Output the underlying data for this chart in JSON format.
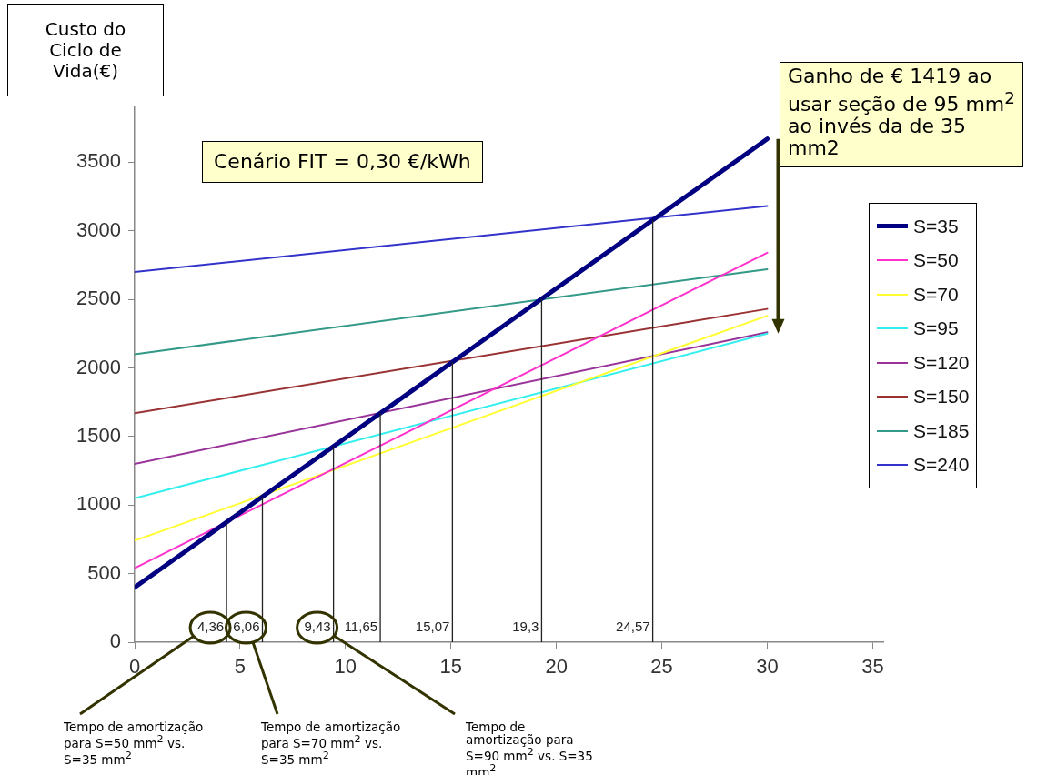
{
  "chart_data": {
    "type": "line",
    "ylabel": "Custo do Ciclo de Vida(€)",
    "x": [
      0,
      30
    ],
    "series": [
      {
        "name": "S=35",
        "color": "#000080",
        "values": [
          400,
          3670
        ]
      },
      {
        "name": "S=50",
        "color": "#ff33cc",
        "values": [
          540,
          2840
        ]
      },
      {
        "name": "S=70",
        "color": "#ffff33",
        "values": [
          740,
          2380
        ]
      },
      {
        "name": "S=95",
        "color": "#33eeee",
        "values": [
          1050,
          2250
        ]
      },
      {
        "name": "S=120",
        "color": "#993399",
        "values": [
          1300,
          2260
        ]
      },
      {
        "name": "S=150",
        "color": "#993333",
        "values": [
          1670,
          2430
        ]
      },
      {
        "name": "S=185",
        "color": "#339988",
        "values": [
          2100,
          2720
        ]
      },
      {
        "name": "S=240",
        "color": "#3333cc",
        "values": [
          2700,
          3180
        ]
      }
    ],
    "xlim": [
      0,
      35.5
    ],
    "xticks": [
      0,
      5,
      10,
      15,
      20,
      25,
      30,
      35
    ],
    "ylim": [
      0,
      3900
    ],
    "yticks": [
      0,
      500,
      1000,
      1500,
      2000,
      2500,
      3000,
      3500
    ],
    "ref_lines": [
      {
        "axis": "x",
        "value": 4.36,
        "label": "4,36"
      },
      {
        "axis": "x",
        "value": 6.06,
        "label": "6,06"
      },
      {
        "axis": "x",
        "value": 9.43,
        "label": "9,43"
      },
      {
        "axis": "x",
        "value": 11.65,
        "label": "11,65"
      },
      {
        "axis": "x",
        "value": 15.07,
        "label": "15,07"
      },
      {
        "axis": "x",
        "value": 19.3,
        "label": "19,3"
      },
      {
        "axis": "x",
        "value": 24.57,
        "label": "24,57"
      }
    ],
    "annotations": [
      "Cenário FIT = 0,30 €/kWh",
      "Ganho de € 1419 ao usar seção de 95 mm$^{2}$ ao invés da de 35 mm2",
      "Tempo de amortização para S=50 mm$^{2}$  vs. S=35 mm$^{2}$",
      "Tempo de amortização para S=70 mm$^{2}$  vs. S=35 mm$^{2}$",
      "Tempo de amortização para S=90 mm$^{2}$  vs. S=35 mm$^{2}$"
    ],
    "legend": "right",
    "marker": "none",
    "line_style": "solid",
    "grid": false
  }
}
